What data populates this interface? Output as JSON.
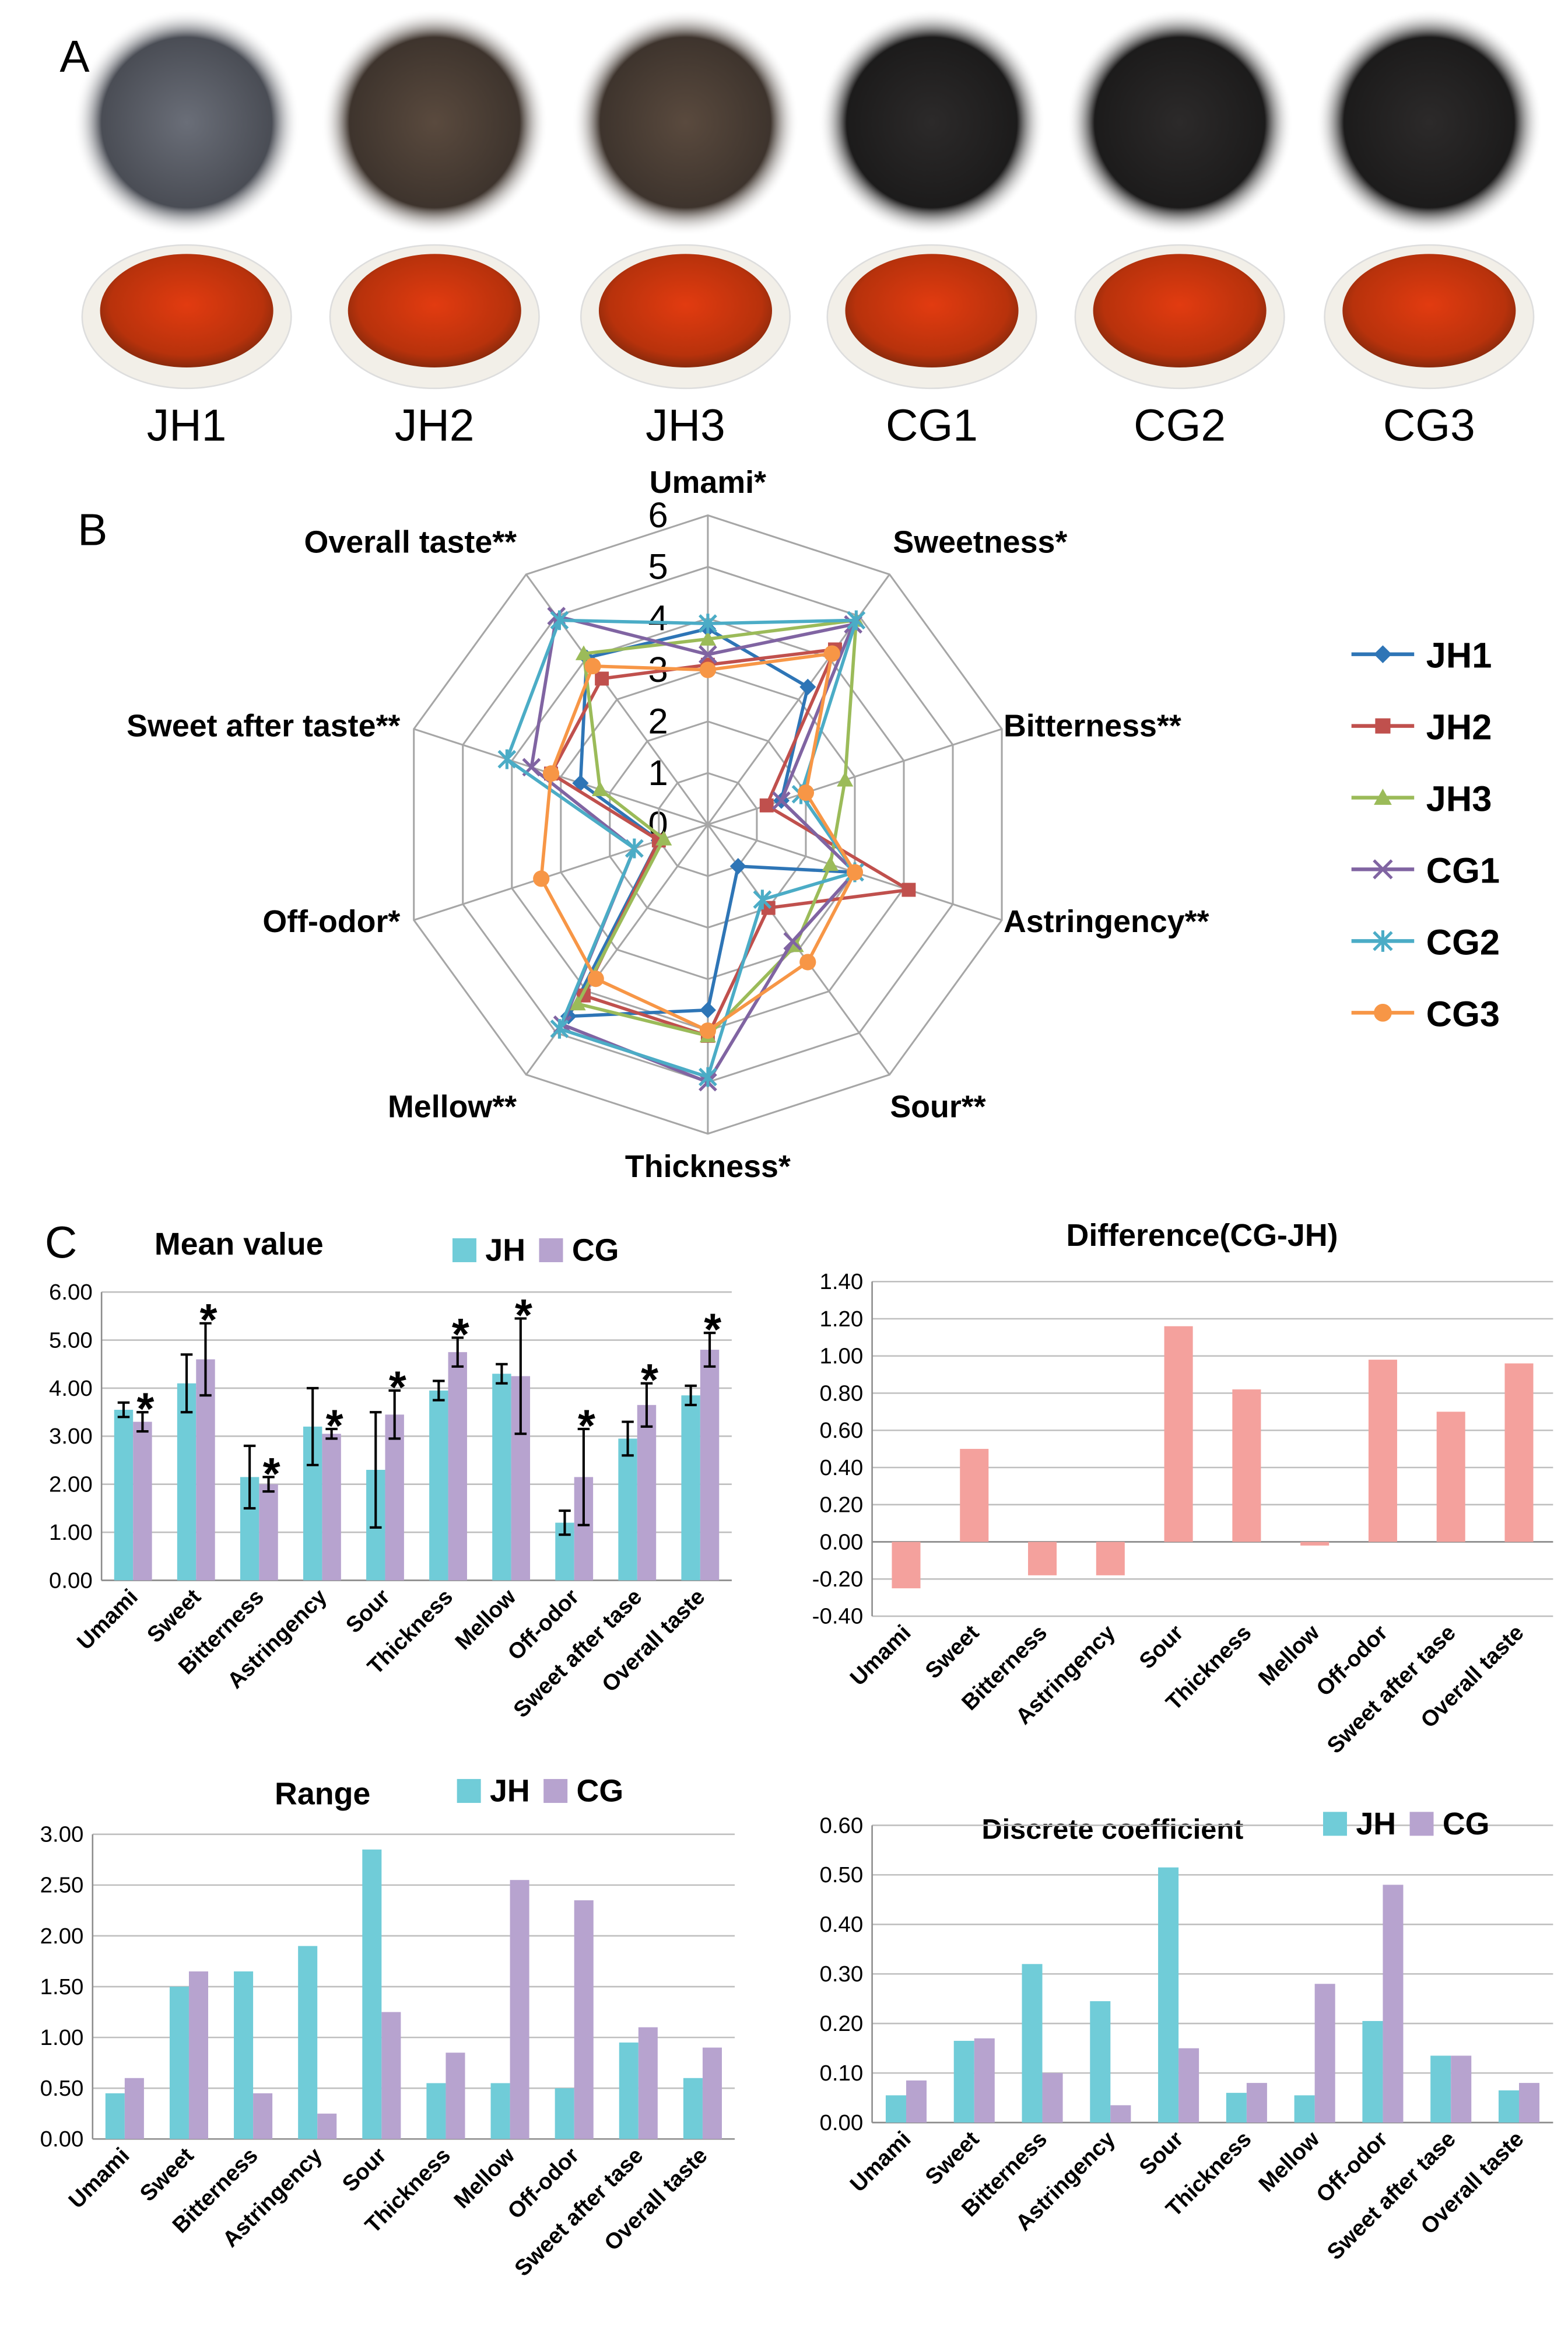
{
  "panel_labels": [
    "A",
    "B",
    "C"
  ],
  "samples": [
    "JH1",
    "JH2",
    "JH3",
    "CG1",
    "CG2",
    "CG3"
  ],
  "chart_data": [
    {
      "type": "radar",
      "categories": [
        "Umami*",
        "Sweetness*",
        "Bitterness**",
        "Astringency**",
        "Sour**",
        "Thickness*",
        "Mellow**",
        "Off-odor*",
        "Sweet after taste**",
        "Overall taste**"
      ],
      "ylim": [
        0,
        6
      ],
      "yticks": [
        0,
        1,
        2,
        3,
        4,
        5,
        6
      ],
      "series": [
        {
          "name": "JH1",
          "color": "#2e75b6",
          "marker": "diamond",
          "values": [
            3.8,
            3.3,
            1.5,
            3.0,
            1.0,
            3.6,
            4.6,
            1.0,
            2.6,
            4.0
          ]
        },
        {
          "name": "JH2",
          "color": "#c0504d",
          "marker": "square",
          "values": [
            3.1,
            4.2,
            1.2,
            4.1,
            2.0,
            4.1,
            4.1,
            1.0,
            3.2,
            3.5
          ]
        },
        {
          "name": "JH3",
          "color": "#9bbb59",
          "marker": "triangle",
          "values": [
            3.6,
            4.9,
            2.8,
            2.5,
            2.9,
            4.1,
            4.3,
            0.9,
            2.2,
            4.1
          ]
        },
        {
          "name": "CG1",
          "color": "#8064a2",
          "marker": "x",
          "values": [
            3.3,
            4.8,
            1.5,
            3.0,
            2.8,
            5.0,
            4.8,
            1.5,
            3.6,
            5.0
          ]
        },
        {
          "name": "CG2",
          "color": "#4bacc6",
          "marker": "star",
          "values": [
            3.9,
            4.9,
            1.9,
            3.0,
            1.8,
            4.9,
            4.9,
            1.5,
            4.1,
            4.9
          ]
        },
        {
          "name": "CG3",
          "color": "#f79646",
          "marker": "circle",
          "values": [
            3.0,
            4.1,
            2.0,
            3.0,
            3.3,
            4.0,
            3.7,
            3.4,
            3.2,
            3.8
          ]
        }
      ]
    },
    {
      "type": "bar",
      "title": "Mean value",
      "categories": [
        "Umami",
        "Sweet",
        "Bitterness",
        "Astringency",
        "Sour",
        "Thickness",
        "Mellow",
        "Off-odor",
        "Sweet after tase",
        "Overall taste"
      ],
      "ylim": [
        0,
        6
      ],
      "yticks": [
        {
          "value": 0,
          "label": "0.00"
        },
        {
          "value": 1,
          "label": "1.00"
        },
        {
          "value": 2,
          "label": "2.00"
        },
        {
          "value": 3,
          "label": "3.00"
        },
        {
          "value": 4,
          "label": "4.00"
        },
        {
          "value": 5,
          "label": "5.00"
        },
        {
          "value": 6,
          "label": "6.00"
        }
      ],
      "series": [
        {
          "name": "JH",
          "color": "#70ccd8",
          "values": [
            3.55,
            4.1,
            2.15,
            3.2,
            2.3,
            3.95,
            4.3,
            1.2,
            2.95,
            3.85
          ],
          "errors": [
            0.15,
            0.6,
            0.65,
            0.8,
            1.2,
            0.2,
            0.2,
            0.25,
            0.35,
            0.2
          ]
        },
        {
          "name": "CG",
          "color": "#b7a3cf",
          "values": [
            3.3,
            4.6,
            2.0,
            3.05,
            3.45,
            4.75,
            4.25,
            2.15,
            3.65,
            4.8
          ],
          "errors": [
            0.2,
            0.75,
            0.15,
            0.1,
            0.5,
            0.3,
            1.2,
            1.0,
            0.45,
            0.35
          ]
        }
      ],
      "significance": [
        "*",
        "*",
        "*",
        "*",
        "*",
        "*",
        "*",
        "*",
        "*",
        "*"
      ]
    },
    {
      "type": "bar",
      "title": "Difference(CG-JH)",
      "categories": [
        "Umami",
        "Sweet",
        "Bitterness",
        "Astringency",
        "Sour",
        "Thickness",
        "Mellow",
        "Off-odor",
        "Sweet after tase",
        "Overall taste"
      ],
      "ylim": [
        -0.4,
        1.4
      ],
      "yticks": [
        {
          "value": -0.4,
          "label": "-0.40"
        },
        {
          "value": -0.2,
          "label": "-0.20"
        },
        {
          "value": 0,
          "label": "0.00"
        },
        {
          "value": 0.2,
          "label": "0.20"
        },
        {
          "value": 0.4,
          "label": "0.40"
        },
        {
          "value": 0.6,
          "label": "0.60"
        },
        {
          "value": 0.8,
          "label": "0.80"
        },
        {
          "value": 1,
          "label": "1.00"
        },
        {
          "value": 1.2,
          "label": "1.20"
        },
        {
          "value": 1.4,
          "label": "1.40"
        }
      ],
      "series": [
        {
          "color": "#f4a19d",
          "values": [
            -0.25,
            0.5,
            -0.18,
            -0.18,
            1.16,
            0.82,
            -0.02,
            0.98,
            0.7,
            0.96
          ]
        }
      ]
    },
    {
      "type": "bar",
      "title": "Range",
      "categories": [
        "Umami",
        "Sweet",
        "Bitterness",
        "Astringency",
        "Sour",
        "Thickness",
        "Mellow",
        "Off-odor",
        "Sweet after tase",
        "Overall taste"
      ],
      "ylim": [
        0,
        3
      ],
      "yticks": [
        {
          "value": 0,
          "label": "0.00"
        },
        {
          "value": 0.5,
          "label": "0.50"
        },
        {
          "value": 1,
          "label": "1.00"
        },
        {
          "value": 1.5,
          "label": "1.50"
        },
        {
          "value": 2,
          "label": "2.00"
        },
        {
          "value": 2.5,
          "label": "2.50"
        },
        {
          "value": 3,
          "label": "3.00"
        }
      ],
      "series": [
        {
          "name": "JH",
          "color": "#70ccd8",
          "values": [
            0.45,
            1.5,
            1.65,
            1.9,
            2.85,
            0.55,
            0.55,
            0.5,
            0.95,
            0.6
          ]
        },
        {
          "name": "CG",
          "color": "#b7a3cf",
          "values": [
            0.6,
            1.65,
            0.45,
            0.25,
            1.25,
            0.85,
            2.55,
            2.35,
            1.1,
            0.9
          ]
        }
      ]
    },
    {
      "type": "bar",
      "title": "Discrete coefficient",
      "categories": [
        "Umami",
        "Sweet",
        "Bitterness",
        "Astringency",
        "Sour",
        "Thickness",
        "Mellow",
        "Off-odor",
        "Sweet after tase",
        "Overall taste"
      ],
      "ylim": [
        0,
        0.6
      ],
      "yticks": [
        {
          "value": 0,
          "label": "0.00"
        },
        {
          "value": 0.1,
          "label": "0.10"
        },
        {
          "value": 0.2,
          "label": "0.20"
        },
        {
          "value": 0.3,
          "label": "0.30"
        },
        {
          "value": 0.4,
          "label": "0.40"
        },
        {
          "value": 0.5,
          "label": "0.50"
        },
        {
          "value": 0.6,
          "label": "0.60"
        }
      ],
      "series": [
        {
          "name": "JH",
          "color": "#70ccd8",
          "values": [
            0.055,
            0.165,
            0.32,
            0.245,
            0.515,
            0.06,
            0.055,
            0.205,
            0.135,
            0.065
          ]
        },
        {
          "name": "CG",
          "color": "#b7a3cf",
          "values": [
            0.085,
            0.17,
            0.1,
            0.035,
            0.15,
            0.08,
            0.28,
            0.48,
            0.135,
            0.08
          ]
        }
      ]
    }
  ]
}
